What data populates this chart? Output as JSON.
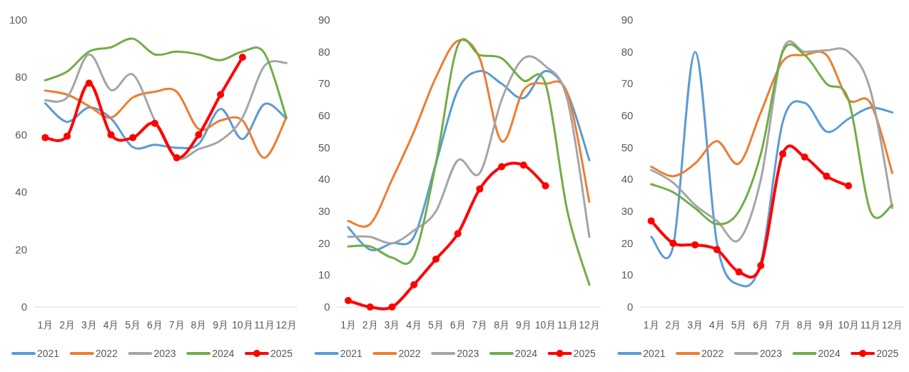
{
  "chart_data": [
    {
      "type": "line",
      "categories": [
        "1月",
        "2月",
        "3月",
        "4月",
        "5月",
        "6月",
        "7月",
        "8月",
        "9月",
        "10月",
        "11月",
        "12月"
      ],
      "ylim": [
        0,
        100
      ],
      "yticks": [
        0,
        20,
        40,
        60,
        80,
        100
      ],
      "legend": "bottom",
      "series": [
        {
          "name": "2021",
          "color": "#5b9bd5",
          "values": [
            71,
            64.5,
            69.5,
            65.7,
            55.7,
            56.5,
            55.5,
            56.8,
            69,
            58.5,
            70.7,
            65.7
          ]
        },
        {
          "name": "2022",
          "color": "#ed7d31",
          "values": [
            75.4,
            74,
            70,
            66,
            73,
            75,
            75,
            62,
            65,
            65,
            52,
            66
          ]
        },
        {
          "name": "2023",
          "color": "#a5a5a5",
          "values": [
            72,
            73,
            88,
            75.6,
            81,
            65,
            52,
            55,
            58,
            66,
            84,
            85
          ]
        },
        {
          "name": "2024",
          "color": "#70ad47",
          "values": [
            79,
            82,
            89,
            90.5,
            93.5,
            88,
            89,
            88,
            86,
            89,
            88.5,
            66
          ]
        },
        {
          "name": "2025",
          "color": "#ff0000",
          "marker": "circle",
          "values": [
            59,
            59.5,
            78,
            60,
            59,
            64,
            52,
            60,
            74,
            87,
            null,
            null
          ]
        }
      ]
    },
    {
      "type": "line",
      "categories": [
        "1月",
        "2月",
        "3月",
        "4月",
        "5月",
        "6月",
        "7月",
        "8月",
        "9月",
        "10月",
        "11月",
        "12月"
      ],
      "ylim": [
        0,
        90
      ],
      "yticks": [
        0,
        10,
        20,
        30,
        40,
        50,
        60,
        70,
        80,
        90
      ],
      "legend": "bottom",
      "series": [
        {
          "name": "2021",
          "color": "#5b9bd5",
          "values": [
            25,
            18,
            20,
            22,
            45,
            68,
            74,
            70,
            65.5,
            74,
            67,
            46
          ]
        },
        {
          "name": "2022",
          "color": "#ed7d31",
          "values": [
            27,
            26,
            40,
            55,
            72,
            83.5,
            78,
            52,
            68,
            70,
            67,
            33
          ]
        },
        {
          "name": "2023",
          "color": "#a5a5a5",
          "values": [
            22,
            22,
            20,
            24,
            30,
            46,
            42,
            65,
            78,
            75.5,
            65,
            22
          ]
        },
        {
          "name": "2024",
          "color": "#70ad47",
          "values": [
            19,
            19,
            15.5,
            16,
            45,
            82,
            79,
            78,
            71,
            70,
            30,
            7
          ]
        },
        {
          "name": "2025",
          "color": "#ff0000",
          "marker": "circle",
          "values": [
            2,
            0,
            0,
            7,
            15,
            23,
            37,
            44,
            44.5,
            38,
            null,
            null
          ]
        }
      ]
    },
    {
      "type": "line",
      "categories": [
        "1月",
        "2月",
        "3月",
        "4月",
        "5月",
        "6月",
        "7月",
        "8月",
        "9月",
        "10月",
        "11月",
        "12月"
      ],
      "ylim": [
        0,
        90
      ],
      "yticks": [
        0,
        10,
        20,
        30,
        40,
        50,
        60,
        70,
        80,
        90
      ],
      "legend": "bottom",
      "series": [
        {
          "name": "2021",
          "color": "#5b9bd5",
          "values": [
            22,
            19,
            80,
            20,
            7,
            14,
            58,
            64,
            55,
            59,
            62.5,
            61
          ]
        },
        {
          "name": "2022",
          "color": "#ed7d31",
          "values": [
            44,
            41,
            45,
            52,
            45,
            61,
            77,
            79,
            79,
            65,
            64,
            42
          ]
        },
        {
          "name": "2023",
          "color": "#a5a5a5",
          "values": [
            43,
            39,
            32,
            27,
            21,
            40,
            80.5,
            80,
            80.5,
            80,
            68,
            31
          ]
        },
        {
          "name": "2024",
          "color": "#70ad47",
          "values": [
            38.5,
            36,
            31,
            26,
            30,
            48,
            80,
            79,
            70,
            65,
            30,
            32
          ]
        },
        {
          "name": "2025",
          "color": "#ff0000",
          "marker": "circle",
          "values": [
            27,
            20,
            19.5,
            18,
            11,
            13,
            48,
            47,
            41,
            38,
            null,
            null
          ]
        }
      ]
    }
  ]
}
